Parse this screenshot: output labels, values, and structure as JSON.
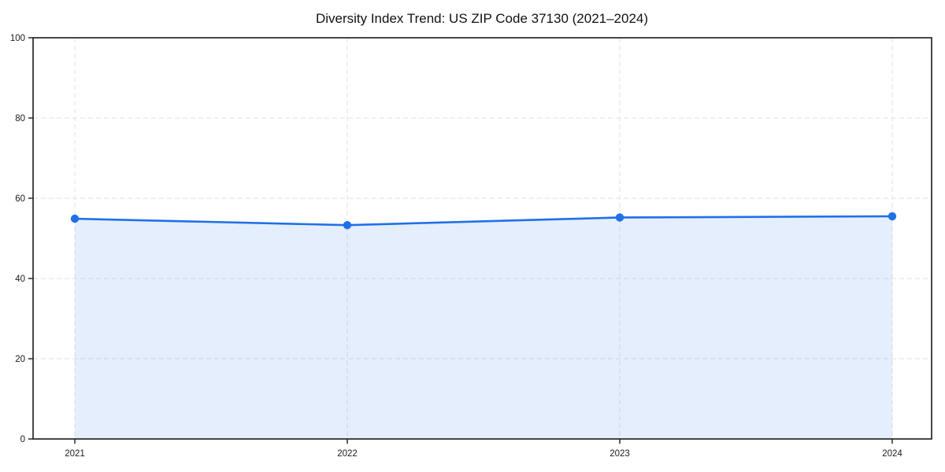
{
  "chart_data": {
    "type": "area",
    "title": "Diversity Index Trend: US ZIP Code 37130 (2021–2024)",
    "categories": [
      "2021",
      "2022",
      "2023",
      "2024"
    ],
    "series": [
      {
        "name": "Diversity Index",
        "values": [
          54.9,
          53.3,
          55.2,
          55.5
        ]
      }
    ],
    "xlabel": "",
    "ylabel": "",
    "ylim": [
      0,
      100
    ],
    "yticks": [
      0,
      20,
      40,
      60,
      80,
      100
    ],
    "grid": true,
    "grid_style": "dashed",
    "legend_position": "none",
    "colors": {
      "line": "#2170e8",
      "marker": "#2170e8",
      "fill_rgba": "rgba(33,112,232,0.12)",
      "grid": "#e2e2e2",
      "spine": "#1a1a1a",
      "text": "#1a1a1a",
      "background": "#ffffff"
    }
  }
}
